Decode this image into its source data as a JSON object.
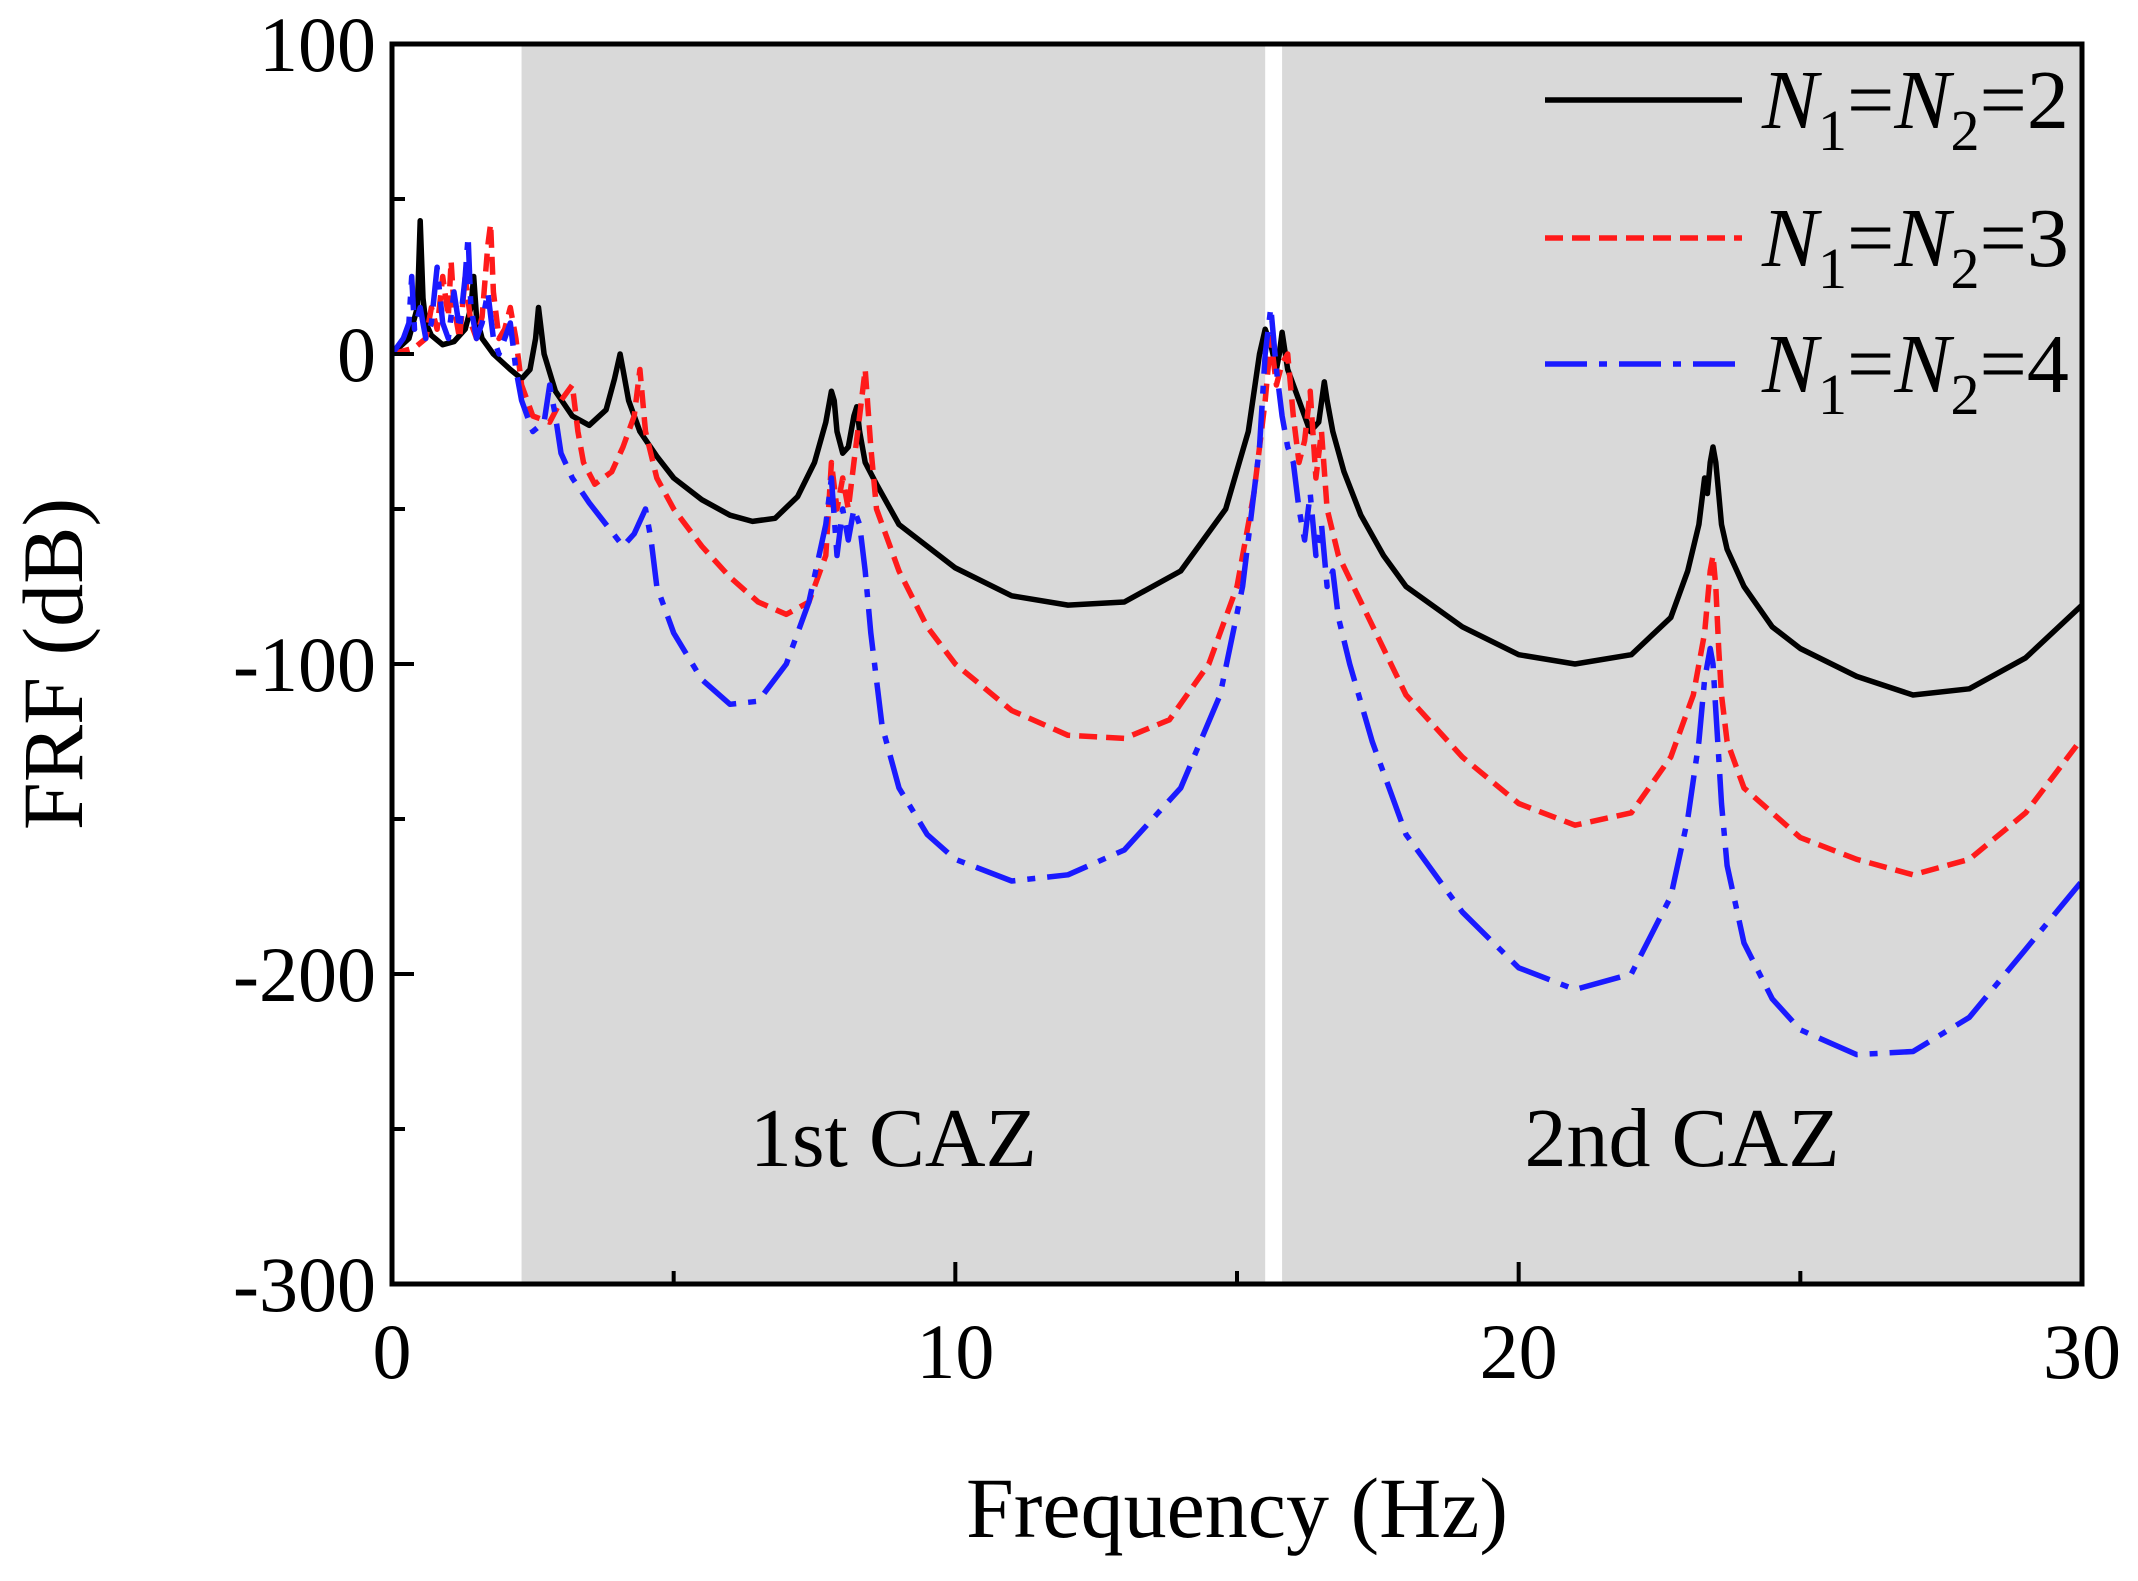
{
  "chart_data": {
    "type": "line",
    "title": "",
    "xlabel": "Frequency (Hz)",
    "ylabel": "FRF (dB)",
    "xlim": [
      0,
      30
    ],
    "ylim": [
      -300,
      100
    ],
    "xticks": [
      0,
      10,
      20,
      30
    ],
    "yticks": [
      100,
      0,
      -100,
      -200,
      -300
    ],
    "grid": false,
    "legend_position": "top-right",
    "shaded_regions": [
      {
        "label": "1st CAZ",
        "x_range": [
          2.3,
          15.5
        ],
        "color": "#d9d9d9"
      },
      {
        "label": "2nd CAZ",
        "x_range": [
          15.8,
          30
        ],
        "color": "#d9d9d9"
      }
    ],
    "series": [
      {
        "name": "N1=N2=2",
        "legend": {
          "n1": "N",
          "sub1": "1",
          "eq1": "=",
          "n2": "N",
          "sub2": "2",
          "eq2": "=",
          "value": "2"
        },
        "color": "#000000",
        "dash": "solid",
        "x": [
          0.0,
          0.3,
          0.45,
          0.5,
          0.55,
          0.6,
          0.7,
          0.9,
          1.1,
          1.3,
          1.4,
          1.45,
          1.5,
          1.6,
          1.8,
          2.1,
          2.3,
          2.45,
          2.55,
          2.6,
          2.7,
          2.9,
          3.2,
          3.5,
          3.8,
          3.95,
          4.05,
          4.1,
          4.2,
          4.4,
          4.7,
          5.0,
          5.5,
          6.0,
          6.4,
          6.8,
          7.2,
          7.5,
          7.7,
          7.8,
          7.85,
          7.9,
          8.0,
          8.1,
          8.15,
          8.2,
          8.25,
          8.3,
          8.4,
          8.6,
          9.0,
          10.0,
          11.0,
          12.0,
          13.0,
          14.0,
          14.8,
          15.2,
          15.4,
          15.5,
          15.6,
          15.7,
          15.75,
          15.8,
          15.9,
          16.1,
          16.3,
          16.45,
          16.55,
          16.6,
          16.7,
          16.9,
          17.2,
          17.6,
          18.0,
          19.0,
          20.0,
          21.0,
          22.0,
          22.7,
          23.0,
          23.2,
          23.3,
          23.35,
          23.4,
          23.45,
          23.5,
          23.55,
          23.6,
          23.7,
          24.0,
          24.5,
          25.0,
          26.0,
          27.0,
          28.0,
          29.0,
          30.0
        ],
        "values": [
          0,
          5,
          15,
          43,
          18,
          10,
          6,
          3,
          4,
          8,
          15,
          25,
          12,
          5,
          0,
          -5,
          -8,
          -5,
          5,
          15,
          0,
          -12,
          -20,
          -23,
          -18,
          -8,
          0,
          -5,
          -15,
          -25,
          -33,
          -40,
          -47,
          -52,
          -54,
          -53,
          -46,
          -35,
          -22,
          -12,
          -15,
          -25,
          -32,
          -30,
          -25,
          -20,
          -17,
          -25,
          -35,
          -42,
          -55,
          -69,
          -78,
          -81,
          -80,
          -70,
          -50,
          -25,
          0,
          8,
          3,
          -5,
          0,
          7,
          -5,
          -15,
          -25,
          -22,
          -9,
          -15,
          -25,
          -38,
          -52,
          -65,
          -75,
          -88,
          -97,
          -100,
          -97,
          -85,
          -70,
          -55,
          -40,
          -45,
          -35,
          -30,
          -35,
          -45,
          -55,
          -63,
          -75,
          -88,
          -95,
          -104,
          -110,
          -108,
          -98,
          -81
        ]
      },
      {
        "name": "N1=N2=3",
        "legend": {
          "n1": "N",
          "sub1": "1",
          "eq1": "=",
          "n2": "N",
          "sub2": "2",
          "eq2": "=",
          "value": "3"
        },
        "color": "#ff1a1a",
        "dash": "short-dash",
        "x": [
          0.0,
          0.4,
          0.6,
          0.7,
          0.8,
          0.9,
          1.0,
          1.05,
          1.1,
          1.2,
          1.3,
          1.4,
          1.5,
          1.6,
          1.7,
          1.75,
          1.8,
          1.9,
          2.0,
          2.1,
          2.2,
          2.3,
          2.5,
          2.8,
          3.0,
          3.2,
          3.3,
          3.4,
          3.6,
          3.9,
          4.1,
          4.3,
          4.4,
          4.5,
          4.7,
          5.0,
          5.5,
          6.0,
          6.5,
          7.0,
          7.4,
          7.7,
          7.8,
          7.9,
          8.0,
          8.1,
          8.2,
          8.3,
          8.4,
          8.5,
          8.6,
          9.0,
          9.5,
          10.0,
          11.0,
          12.0,
          13.0,
          13.8,
          14.5,
          15.0,
          15.3,
          15.5,
          15.6,
          15.7,
          15.8,
          15.9,
          16.0,
          16.1,
          16.2,
          16.3,
          16.4,
          16.5,
          16.6,
          16.8,
          17.2,
          17.6,
          18.0,
          19.0,
          20.0,
          21.0,
          22.0,
          22.7,
          23.1,
          23.3,
          23.35,
          23.4,
          23.45,
          23.5,
          23.55,
          23.6,
          23.7,
          24.0,
          24.5,
          25.0,
          26.0,
          27.0,
          28.0,
          29.0,
          30.0
        ],
        "values": [
          0,
          2,
          5,
          15,
          8,
          25,
          12,
          30,
          15,
          5,
          25,
          10,
          5,
          12,
          35,
          42,
          20,
          5,
          8,
          15,
          5,
          -10,
          -20,
          -22,
          -15,
          -10,
          -25,
          -35,
          -42,
          -38,
          -30,
          -20,
          -5,
          -25,
          -40,
          -50,
          -62,
          -72,
          -80,
          -84,
          -80,
          -65,
          -35,
          -50,
          -40,
          -50,
          -35,
          -20,
          -5,
          -30,
          -50,
          -70,
          -88,
          -100,
          -115,
          -123,
          -124,
          -118,
          -100,
          -75,
          -45,
          -15,
          5,
          -10,
          -3,
          0,
          -20,
          -35,
          -28,
          -12,
          -40,
          -25,
          -50,
          -65,
          -80,
          -95,
          -110,
          -130,
          -145,
          -152,
          -148,
          -130,
          -110,
          -90,
          -80,
          -70,
          -65,
          -75,
          -95,
          -110,
          -125,
          -140,
          -148,
          -156,
          -163,
          -168,
          -163,
          -148,
          -124
        ]
      },
      {
        "name": "N1=N2=4",
        "legend": {
          "n1": "N",
          "sub1": "1",
          "eq1": "=",
          "n2": "N",
          "sub2": "2",
          "eq2": "=",
          "value": "4"
        },
        "color": "#1a1aff",
        "dash": "dash-dot",
        "x": [
          0.0,
          0.2,
          0.3,
          0.35,
          0.4,
          0.5,
          0.6,
          0.7,
          0.8,
          0.9,
          1.0,
          1.1,
          1.2,
          1.3,
          1.35,
          1.4,
          1.5,
          1.6,
          1.7,
          1.8,
          1.9,
          2.0,
          2.1,
          2.2,
          2.3,
          2.5,
          2.7,
          2.8,
          2.9,
          3.0,
          3.2,
          3.5,
          3.8,
          4.1,
          4.3,
          4.5,
          4.6,
          4.7,
          5.0,
          5.5,
          6.0,
          6.5,
          7.0,
          7.4,
          7.7,
          7.8,
          7.9,
          8.0,
          8.1,
          8.2,
          8.3,
          8.4,
          8.5,
          8.7,
          9.0,
          9.5,
          10.0,
          11.0,
          12.0,
          13.0,
          14.0,
          14.7,
          15.1,
          15.4,
          15.5,
          15.6,
          15.7,
          15.8,
          15.9,
          16.0,
          16.1,
          16.2,
          16.3,
          16.4,
          16.5,
          16.6,
          16.7,
          16.8,
          17.0,
          17.4,
          18.0,
          19.0,
          20.0,
          21.0,
          22.0,
          22.7,
          23.0,
          23.2,
          23.3,
          23.35,
          23.4,
          23.45,
          23.5,
          23.55,
          23.6,
          23.7,
          24.0,
          24.5,
          25.0,
          26.0,
          27.0,
          28.0,
          29.0,
          30.0
        ],
        "values": [
          0,
          5,
          10,
          25,
          8,
          15,
          5,
          10,
          28,
          10,
          5,
          20,
          8,
          25,
          38,
          15,
          5,
          10,
          20,
          5,
          0,
          5,
          10,
          -5,
          -15,
          -25,
          -22,
          -10,
          -20,
          -32,
          -40,
          -48,
          -55,
          -62,
          -58,
          -50,
          -60,
          -75,
          -90,
          -105,
          -113,
          -112,
          -100,
          -80,
          -55,
          -40,
          -65,
          -50,
          -60,
          -50,
          -55,
          -70,
          -90,
          -120,
          -140,
          -155,
          -163,
          -170,
          -168,
          -160,
          -140,
          -110,
          -75,
          -30,
          0,
          15,
          -5,
          -20,
          -30,
          -35,
          -50,
          -60,
          -45,
          -65,
          -55,
          -75,
          -70,
          -85,
          -100,
          -125,
          -155,
          -180,
          -198,
          -205,
          -200,
          -175,
          -150,
          -125,
          -105,
          -100,
          -95,
          -100,
          -115,
          -130,
          -145,
          -165,
          -190,
          -208,
          -218,
          -226,
          -225,
          -214,
          -192,
          -170
        ]
      }
    ]
  }
}
